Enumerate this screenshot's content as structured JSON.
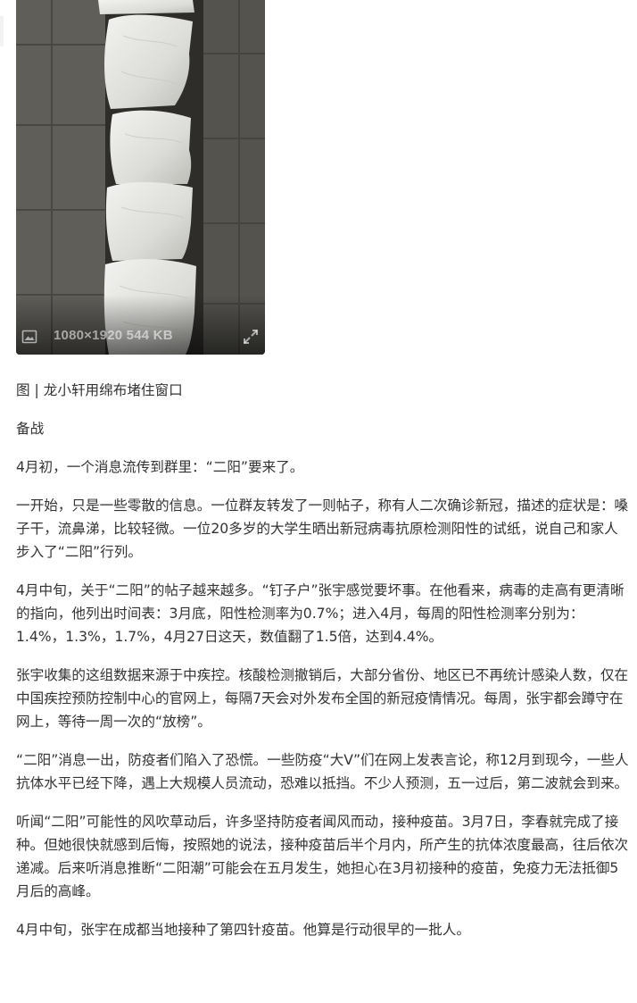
{
  "image": {
    "info": "1080×1920 544 KB",
    "icon": "image-icon",
    "expand_icon": "expand-icon"
  },
  "article": {
    "caption": "图 | 龙小轩用绵布堵住窗口",
    "section_title": "备战",
    "paragraphs": [
      "4月初，一个消息流传到群里：“二阳”要来了。",
      "一开始，只是一些零散的信息。一位群友转发了一则帖子，称有人二次确诊新冠，描述的症状是：嗓子干，流鼻涕，比较轻微。一位20多岁的大学生晒出新冠病毒抗原检测阳性的试纸，说自己和家人步入了“二阳”行列。",
      "4月中旬，关于“二阳”的帖子越来越多。“钉子户”张宇感觉要坏事。在他看来，病毒的走高有更清晰的指向，他列出时间表：3月底，阳性检测率为0.7%；进入4月，每周的阳性检测率分别为：1.4%，1.3%，1.7%，4月27日这天，数值翻了1.5倍，达到4.4%。",
      "张宇收集的这组数据来源于中疾控。核酸检测撤销后，大部分省份、地区已不再统计感染人数，仅在中国疾控预防控制中心的官网上，每隔7天会对外发布全国的新冠疫情情况。每周，张宇都会蹲守在网上，等待一周一次的“放榜”。",
      "“二阳”消息一出，防疫者们陷入了恐慌。一些防疫“大V”们在网上发表言论，称12月到现今，一些人抗体水平已经下降，遇上大规模人员流动，恐难以抵挡。不少人预测，五一过后，第二波就会到来。",
      "听闻“二阳”可能性的风吹草动后，许多坚持防疫者闻风而动，接种疫苗。3月7日，李春就完成了接种。但她很快就感到后悔，按照她的说法，接种疫苗后半个月内，所产生的抗体浓度最高，往后依次递减。后来听消息推断“二阳潮”可能会在五月发生，她担心在3月初接种的疫苗，免疫力无法抵御5月后的高峰。",
      "4月中旬，张宇在成都当地接种了第四针疫苗。他算是行动很早的一批人。"
    ]
  }
}
